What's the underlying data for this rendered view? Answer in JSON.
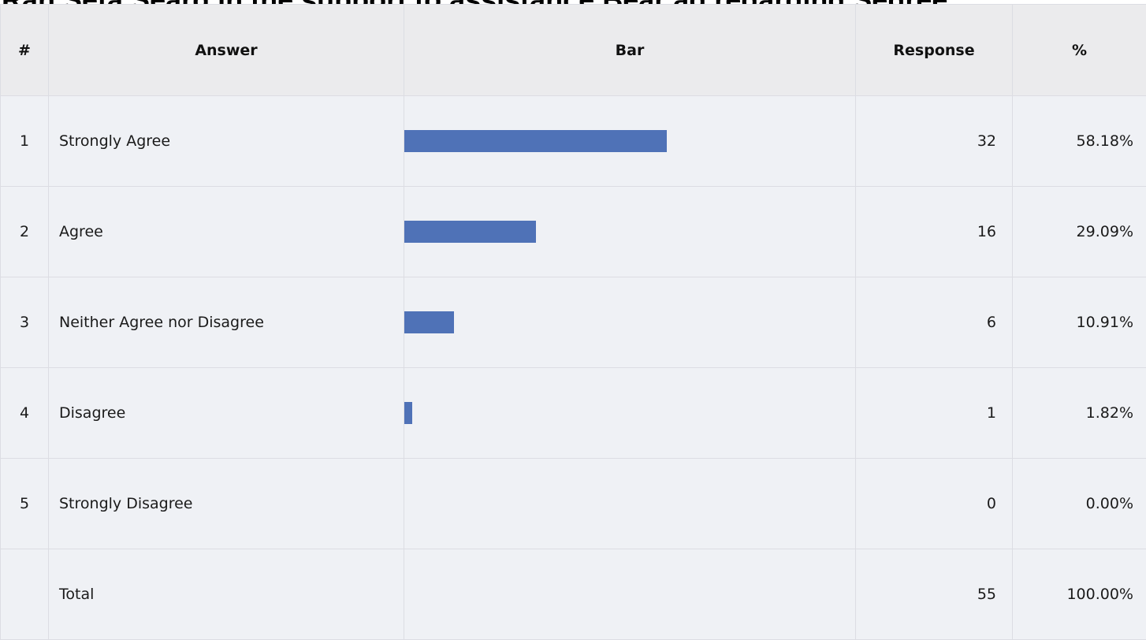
{
  "title": "Ran Seta Seard in the support to assistance Bear ad regarding Segree",
  "chart_data": {
    "type": "table",
    "columns": [
      "#",
      "Answer",
      "Bar",
      "Response",
      "%"
    ],
    "rows": [
      {
        "index": "1",
        "answer": "Strongly Agree",
        "response": "32",
        "percent": "58.18%",
        "value": 32
      },
      {
        "index": "2",
        "answer": "Agree",
        "response": "16",
        "percent": "29.09%",
        "value": 16
      },
      {
        "index": "3",
        "answer": "Neither Agree nor Disagree",
        "response": "6",
        "percent": "10.91%",
        "value": 6
      },
      {
        "index": "4",
        "answer": "Disagree",
        "response": "1",
        "percent": "1.82%",
        "value": 1
      },
      {
        "index": "5",
        "answer": "Strongly Disagree",
        "response": "0",
        "percent": "0.00%",
        "value": 0
      }
    ],
    "total": {
      "index": "",
      "answer": "Total",
      "response": "55",
      "percent": "100.00%"
    },
    "bar_max": 55,
    "bar_color": "#4f72b7"
  }
}
